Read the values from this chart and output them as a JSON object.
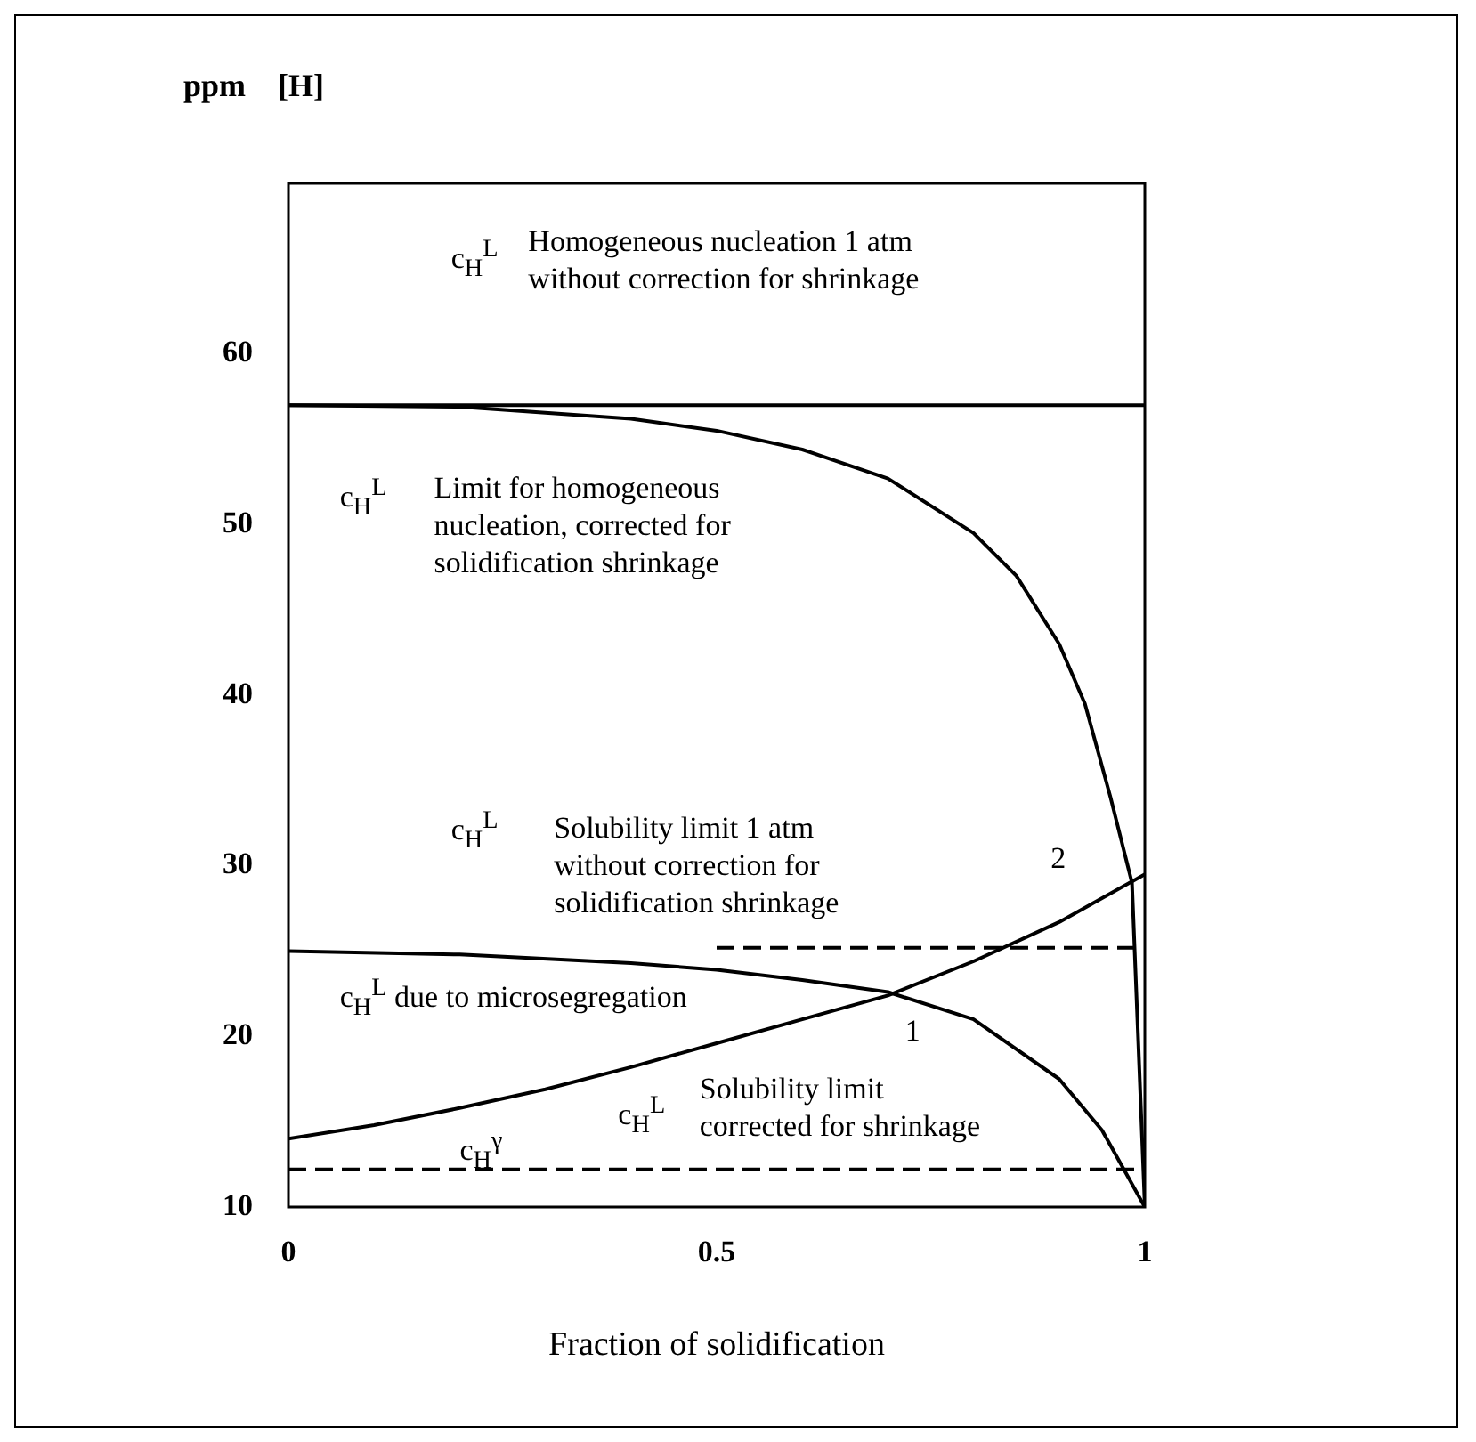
{
  "chart_data": {
    "type": "line",
    "xlabel": "Fraction of solidification",
    "ylabel": "ppm    [H]",
    "xlim": [
      0,
      1
    ],
    "xticks": [
      0,
      0.5,
      1
    ],
    "ylim": [
      10,
      70
    ],
    "yticks": [
      10,
      20,
      30,
      40,
      50,
      60
    ],
    "grid": false,
    "legend": false,
    "marker": "none",
    "series": [
      {
        "color": "#000000",
        "line_style": "solid",
        "x": [
          0,
          1
        ],
        "values": [
          57,
          57
        ]
      },
      {
        "color": "#000000",
        "line_style": "solid",
        "x": [
          0,
          0.2,
          0.4,
          0.5,
          0.6,
          0.7,
          0.8,
          0.85,
          0.9,
          0.93,
          0.96,
          0.985,
          1
        ],
        "values": [
          57,
          56.9,
          56.2,
          55.5,
          54.4,
          52.7,
          49.5,
          47,
          43,
          39.5,
          34,
          29,
          10
        ]
      },
      {
        "color": "#000000",
        "line_style": "solid",
        "x": [
          0,
          0.2,
          0.4,
          0.5,
          0.6,
          0.7,
          0.8,
          0.9,
          0.95,
          1
        ],
        "values": [
          25,
          24.8,
          24.3,
          23.9,
          23.3,
          22.6,
          21,
          17.5,
          14.5,
          10
        ]
      },
      {
        "color": "#000000",
        "line_style": "dashed",
        "x": [
          0.5,
          1
        ],
        "values": [
          25.2,
          25.2
        ]
      },
      {
        "color": "#000000",
        "line_style": "solid",
        "x": [
          0,
          0.1,
          0.2,
          0.3,
          0.4,
          0.5,
          0.6,
          0.7,
          0.8,
          0.9,
          1
        ],
        "values": [
          14,
          14.8,
          15.8,
          16.9,
          18.2,
          19.6,
          21,
          22.4,
          24.4,
          26.7,
          29.5
        ]
      },
      {
        "color": "#000000",
        "line_style": "dashed",
        "x": [
          0,
          1
        ],
        "values": [
          12.2,
          12.2
        ]
      }
    ],
    "annotations": [
      "c$_{H}$$^{L}$",
      "Homogeneous nucleation 1 atm\nwithout correction for shrinkage",
      "c$_{H}$$^{L}$",
      "Limit for homogeneous\nnucleation, corrected for\nsolidification shrinkage",
      "c$_{H}$$^{L}$",
      "Solubility limit 1 atm\nwithout correction for\nsolidification shrinkage",
      "c$_{H}$$^{L}$ due to microsegregation",
      "1",
      "2",
      "c$_{H}$$^{γ}$",
      "c$_{H}$$^{L}$",
      "Solubility limit\ncorrected for shrinkage"
    ]
  }
}
